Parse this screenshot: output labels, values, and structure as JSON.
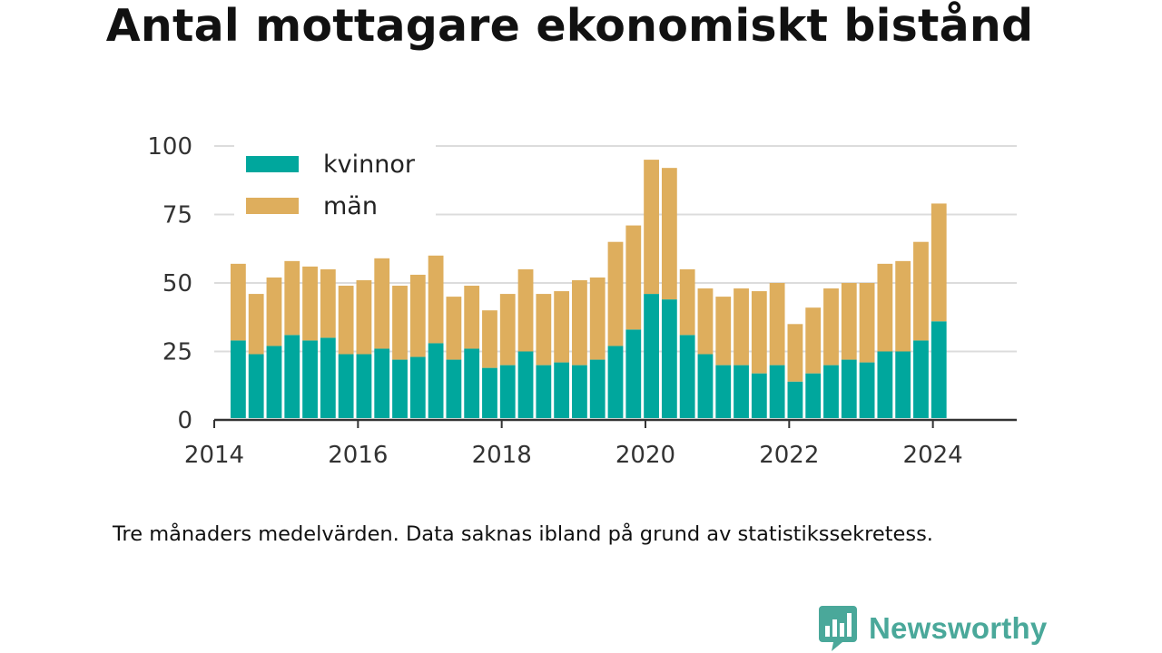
{
  "title": "Antal mottagare ekonomiskt bistånd",
  "footnote": "Tre månaders medelvärden. Data saknas ibland på grund av statistikssekretess.",
  "brand": {
    "name": "Newsworthy",
    "icon": "bar-chart-speech-bubble-icon",
    "color": "#4aa89a"
  },
  "chart_data": {
    "type": "bar",
    "stacked": true,
    "title": "Antal mottagare ekonomiskt bistånd",
    "xlabel": "",
    "ylabel": "",
    "ylim": [
      0,
      100
    ],
    "yticks": [
      0,
      25,
      50,
      75,
      100
    ],
    "xticks": [
      "2014",
      "2016",
      "2018",
      "2020",
      "2022",
      "2024"
    ],
    "xlim": [
      "2014-01",
      "2025-03"
    ],
    "grid": true,
    "legend_position": "top-left",
    "categories": [
      "2014-05",
      "2014-08",
      "2014-11",
      "2015-02",
      "2015-05",
      "2015-08",
      "2015-11",
      "2016-02",
      "2016-05",
      "2016-08",
      "2016-11",
      "2017-02",
      "2017-05",
      "2017-08",
      "2017-11",
      "2018-02",
      "2018-05",
      "2018-08",
      "2018-11",
      "2019-02",
      "2019-05",
      "2019-08",
      "2019-11",
      "2020-02",
      "2020-05",
      "2020-08",
      "2020-11",
      "2021-02",
      "2021-05",
      "2021-08",
      "2021-11",
      "2022-02",
      "2022-05",
      "2022-08",
      "2022-11",
      "2023-02",
      "2023-05",
      "2023-08",
      "2023-11",
      "2024-02"
    ],
    "series": [
      {
        "name": "kvinnor",
        "color": "#00a79d",
        "values": [
          29,
          24,
          27,
          31,
          29,
          30,
          24,
          24,
          26,
          22,
          23,
          28,
          22,
          26,
          19,
          20,
          25,
          20,
          21,
          20,
          22,
          27,
          33,
          46,
          44,
          31,
          24,
          20,
          20,
          17,
          20,
          14,
          17,
          20,
          22,
          21,
          25,
          25,
          29,
          36
        ]
      },
      {
        "name": "män",
        "color": "#deae5d",
        "values": [
          28,
          22,
          25,
          27,
          27,
          25,
          25,
          27,
          33,
          27,
          30,
          32,
          23,
          23,
          21,
          26,
          30,
          26,
          26,
          31,
          30,
          38,
          38,
          49,
          48,
          24,
          24,
          25,
          28,
          30,
          30,
          21,
          24,
          28,
          28,
          29,
          32,
          33,
          36,
          43
        ]
      }
    ]
  }
}
